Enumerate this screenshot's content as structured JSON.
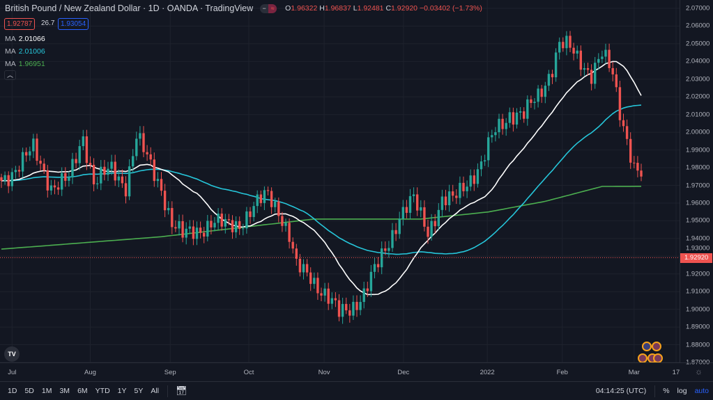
{
  "header": {
    "title": "British Pound / New Zealand Dollar · 1D · OANDA · TradingView",
    "toggle_left": "−",
    "toggle_right": "≈",
    "open_label": "O",
    "open": "1.96322",
    "high_label": "H",
    "high": "1.96837",
    "low_label": "L",
    "low": "1.92481",
    "close_label": "C",
    "close": "1.92920",
    "change": "−0.03402 (−1.73%)",
    "sell": "1.92787",
    "spread": "26.7",
    "buy": "1.93054"
  },
  "indicators": [
    {
      "label": "MA",
      "value": "2.01066",
      "color": "#ffffff"
    },
    {
      "label": "MA",
      "value": "2.01006",
      "color": "#26c6da"
    },
    {
      "label": "MA",
      "value": "1.96951",
      "color": "#4caf50"
    }
  ],
  "collapse_icon": "chevron-up",
  "colors": {
    "up": "#26a69a",
    "down": "#ef5350",
    "bg": "#131722"
  },
  "chart_data": {
    "type": "candlestick",
    "ylim": [
      1.87,
      2.07
    ],
    "y_ticks": [
      "2.07000",
      "2.06000",
      "2.05000",
      "2.04000",
      "2.03000",
      "2.02000",
      "2.01000",
      "2.00000",
      "1.99000",
      "1.98000",
      "1.97000",
      "1.96000",
      "1.95000",
      "1.94000",
      "1.93000",
      "1.92000",
      "1.91000",
      "1.90000",
      "1.89000",
      "1.88000",
      "1.87000"
    ],
    "current_price": "1.92920",
    "num_days": 181,
    "close_path": [
      [
        0,
        1.9726
      ],
      [
        4,
        1.98
      ],
      [
        9,
        1.99
      ],
      [
        14,
        1.97
      ],
      [
        19,
        1.9726
      ],
      [
        23,
        1.998
      ],
      [
        26,
        1.9726
      ],
      [
        31,
        1.978
      ],
      [
        35,
        1.9705
      ],
      [
        38,
        1.998
      ],
      [
        42,
        1.98
      ],
      [
        45,
        1.969
      ],
      [
        48,
        1.949
      ],
      [
        51,
        1.941
      ],
      [
        55,
        1.945
      ],
      [
        59,
        1.949
      ],
      [
        63,
        1.947
      ],
      [
        67,
        1.949
      ],
      [
        71,
        1.957
      ],
      [
        75,
        1.965
      ],
      [
        78,
        1.957
      ],
      [
        81,
        1.941
      ],
      [
        83,
        1.923
      ],
      [
        87,
        1.919
      ],
      [
        91,
        1.909
      ],
      [
        95,
        1.897
      ],
      [
        98,
        1.901
      ],
      [
        102,
        1.909
      ],
      [
        106,
        1.925
      ],
      [
        109,
        1.939
      ],
      [
        112,
        1.953
      ],
      [
        116,
        1.961
      ],
      [
        120,
        1.945
      ],
      [
        124,
        1.961
      ],
      [
        127,
        1.961
      ],
      [
        131,
        1.973
      ],
      [
        135,
        1.981
      ],
      [
        139,
        2.001
      ],
      [
        143,
        2.011
      ],
      [
        147,
        2.009
      ],
      [
        151,
        2.021
      ],
      [
        155,
        2.037
      ],
      [
        157,
        2.049
      ],
      [
        160,
        2.047
      ],
      [
        163,
        2.041
      ],
      [
        166,
        2.033
      ],
      [
        169,
        2.043
      ],
      [
        172,
        2.033
      ],
      [
        174,
        2.013
      ],
      [
        176,
        1.997
      ],
      [
        178,
        1.979
      ],
      [
        180,
        1.975
      ],
      [
        181,
        1.9292
      ]
    ],
    "ma_green_path": [
      [
        0,
        1.934
      ],
      [
        45,
        1.941
      ],
      [
        88,
        1.951
      ],
      [
        118,
        1.951
      ],
      [
        137,
        1.955
      ],
      [
        153,
        1.961
      ],
      [
        169,
        1.9694
      ],
      [
        181,
        1.9695
      ]
    ],
    "ma_periods": [
      20,
      50
    ],
    "x_labels": [
      {
        "label": "Jul",
        "index": 3
      },
      {
        "label": "Aug",
        "index": 25
      },
      {
        "label": "Sep",
        "index": 47.5
      },
      {
        "label": "Oct",
        "index": 69.6
      },
      {
        "label": "Nov",
        "index": 90.8
      },
      {
        "label": "Dec",
        "index": 113.1
      },
      {
        "label": "2022",
        "index": 136.7
      },
      {
        "label": "Feb",
        "index": 157.8
      },
      {
        "label": "Mar",
        "index": 178
      },
      {
        "label": "17",
        "index": 189.8
      }
    ]
  },
  "bottom": {
    "ranges": [
      "1D",
      "5D",
      "1M",
      "3M",
      "6M",
      "YTD",
      "1Y",
      "5Y",
      "All"
    ],
    "time": "04:14:25 (UTC)",
    "percent": "%",
    "log": "log",
    "auto": "auto"
  }
}
